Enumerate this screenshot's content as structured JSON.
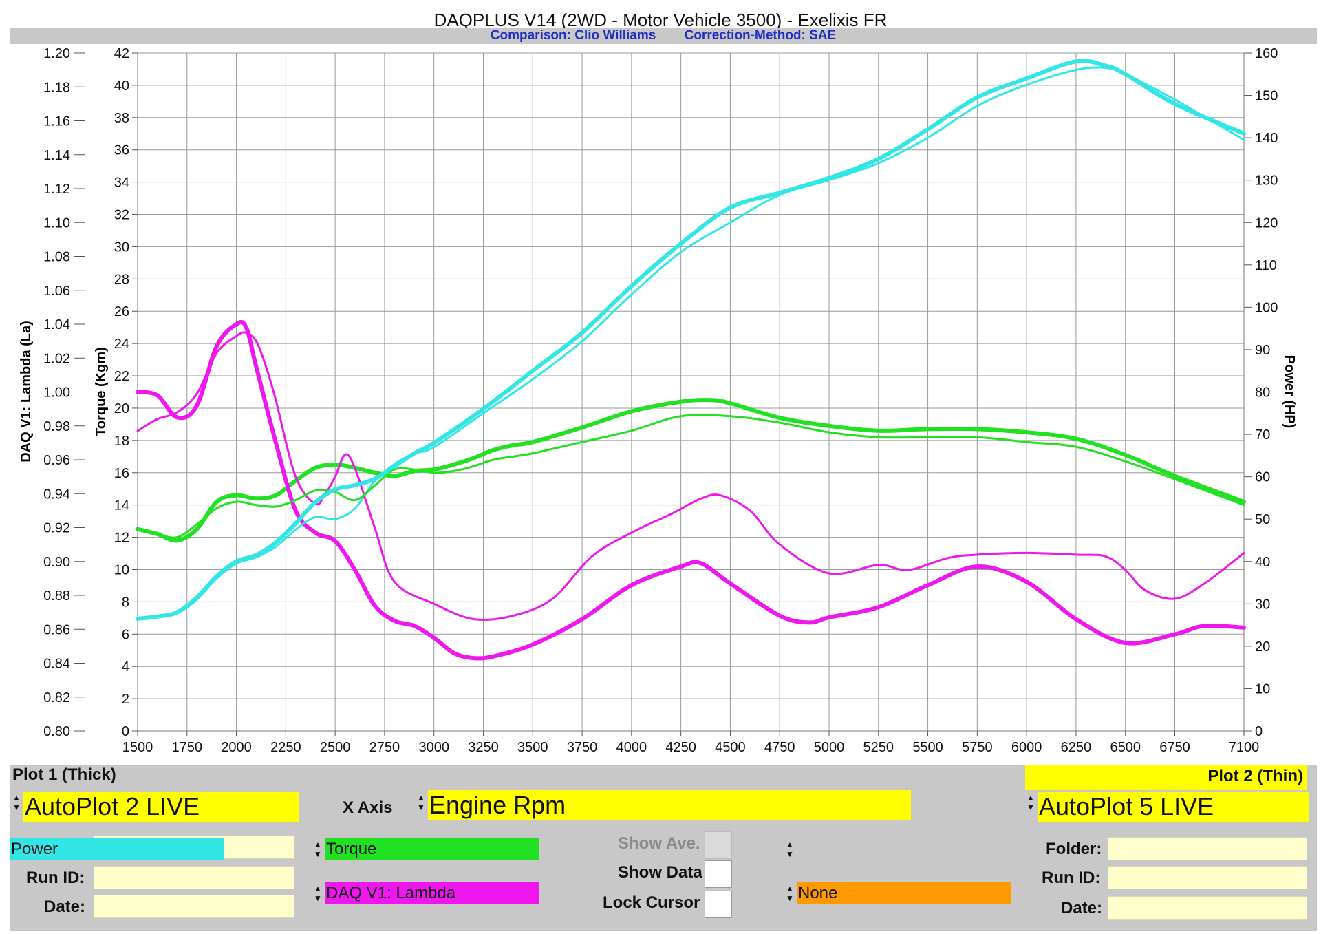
{
  "header": {
    "title": "DAQPLUS V14 (2WD - Motor Vehicle 3500) - Exelixis FR",
    "comparison": "Comparison: Clio Williams",
    "correction": "Correction-Method: SAE"
  },
  "colors": {
    "torque": "#22e022",
    "power": "#33e6e6",
    "lambda": "#ee18ee",
    "none": "#ff9900",
    "yellow": "#ffff00",
    "panel": "#c8c8c8"
  },
  "chart_data": {
    "type": "line",
    "title": "DAQPLUS V14 (2WD - Motor Vehicle 3500) - Exelixis FR",
    "xlim": [
      1500,
      7100
    ],
    "x_ticks": [
      "1500",
      "1750",
      "2000",
      "2250",
      "2500",
      "2750",
      "3000",
      "3250",
      "3500",
      "3750",
      "4000",
      "4250",
      "4500",
      "4750",
      "5000",
      "5250",
      "5500",
      "5750",
      "6000",
      "6250",
      "6500",
      "6750",
      "7100"
    ],
    "axes": {
      "lambda": {
        "label": "DAQ V1: Lambda (La)",
        "min": 0.8,
        "max": 1.2,
        "ticks": [
          "0.80",
          "0.82",
          "0.84",
          "0.86",
          "0.88",
          "0.90",
          "0.92",
          "0.94",
          "0.96",
          "0.98",
          "1.00",
          "1.02",
          "1.04",
          "1.06",
          "1.08",
          "1.10",
          "1.12",
          "1.14",
          "1.16",
          "1.18",
          "1.20"
        ]
      },
      "torque": {
        "label": "Torque (Kgm)",
        "min": 0,
        "max": 42,
        "ticks": [
          "0",
          "2",
          "4",
          "6",
          "8",
          "10",
          "12",
          "14",
          "16",
          "18",
          "20",
          "22",
          "24",
          "26",
          "28",
          "30",
          "32",
          "34",
          "36",
          "38",
          "40",
          "42"
        ]
      },
      "power": {
        "label": "Power (HP)",
        "min": 0,
        "max": 160,
        "ticks": [
          "0",
          "10",
          "20",
          "30",
          "40",
          "50",
          "60",
          "70",
          "80",
          "90",
          "100",
          "110",
          "120",
          "130",
          "140",
          "150",
          "160"
        ]
      }
    },
    "grid": true,
    "series": [
      {
        "name": "Torque",
        "plot": "thick",
        "axis": "torque",
        "color": "#22e022",
        "x": [
          1500,
          1600,
          1700,
          1800,
          1900,
          2000,
          2100,
          2200,
          2300,
          2400,
          2500,
          2600,
          2700,
          2800,
          2900,
          3000,
          3100,
          3200,
          3300,
          3400,
          3500,
          3750,
          4000,
          4250,
          4400,
          4500,
          4750,
          5000,
          5250,
          5500,
          5750,
          6000,
          6250,
          6500,
          6750,
          7100
        ],
        "y": [
          12.5,
          12.2,
          11.8,
          12.5,
          14.2,
          14.6,
          14.4,
          14.6,
          15.5,
          16.3,
          16.5,
          16.3,
          16.0,
          15.8,
          16.1,
          16.2,
          16.5,
          16.9,
          17.4,
          17.7,
          17.9,
          18.8,
          19.8,
          20.4,
          20.5,
          20.3,
          19.4,
          18.9,
          18.6,
          18.7,
          18.7,
          18.5,
          18.1,
          17.1,
          15.8,
          14.2
        ]
      },
      {
        "name": "DAQ V1: Lambda",
        "plot": "thick",
        "axis": "lambda",
        "color": "#ee18ee",
        "x": [
          1500,
          1600,
          1700,
          1800,
          1900,
          2000,
          2050,
          2100,
          2200,
          2300,
          2400,
          2500,
          2600,
          2700,
          2800,
          2900,
          3000,
          3100,
          3200,
          3300,
          3500,
          3750,
          4000,
          4250,
          4350,
          4500,
          4750,
          4900,
          5000,
          5250,
          5500,
          5750,
          6000,
          6250,
          6500,
          6750,
          6900,
          7100
        ],
        "y": [
          1.0,
          0.998,
          0.985,
          0.992,
          1.027,
          1.04,
          1.038,
          1.015,
          0.97,
          0.93,
          0.917,
          0.912,
          0.895,
          0.874,
          0.865,
          0.862,
          0.855,
          0.846,
          0.843,
          0.844,
          0.851,
          0.866,
          0.886,
          0.897,
          0.899,
          0.887,
          0.868,
          0.864,
          0.867,
          0.873,
          0.886,
          0.897,
          0.888,
          0.866,
          0.852,
          0.857,
          0.862,
          0.861
        ]
      },
      {
        "name": "Power",
        "plot": "thin",
        "axis": "power",
        "color": "#33e6e6",
        "x": [
          1500,
          1600,
          1700,
          1800,
          1900,
          2000,
          2100,
          2200,
          2300,
          2400,
          2500,
          2600,
          2700,
          2800,
          2900,
          3000,
          3250,
          3500,
          3750,
          4000,
          4250,
          4500,
          4750,
          5000,
          5250,
          5500,
          5750,
          6000,
          6250,
          6400,
          6500,
          6750,
          7100
        ],
        "y": [
          26.5,
          27.0,
          27.8,
          31.0,
          36.0,
          39.5,
          41.0,
          43.5,
          47.5,
          50.5,
          50.0,
          52.5,
          59.0,
          63.0,
          65.5,
          67.0,
          75.0,
          83.0,
          92.0,
          103.0,
          113.0,
          120.0,
          126.5,
          130.0,
          134.0,
          140.0,
          147.5,
          152.5,
          156.0,
          156.5,
          155.0,
          149.0,
          139.5
        ]
      },
      {
        "name": "DAQ V1: Lambda",
        "plot": "thin",
        "axis": "lambda",
        "color": "#ee18ee",
        "x": [
          1500,
          1600,
          1700,
          1800,
          1900,
          2000,
          2050,
          2100,
          2150,
          2200,
          2300,
          2400,
          2450,
          2500,
          2550,
          2600,
          2700,
          2800,
          3000,
          3200,
          3400,
          3600,
          3800,
          4000,
          4200,
          4350,
          4450,
          4600,
          4750,
          5000,
          5250,
          5400,
          5600,
          5750,
          6000,
          6250,
          6400,
          6500,
          6600,
          6750,
          6900,
          7100
        ],
        "y": [
          0.977,
          0.984,
          0.988,
          0.999,
          1.023,
          1.033,
          1.035,
          1.03,
          1.015,
          0.995,
          0.95,
          0.934,
          0.94,
          0.95,
          0.963,
          0.955,
          0.92,
          0.888,
          0.875,
          0.866,
          0.868,
          0.878,
          0.903,
          0.917,
          0.928,
          0.937,
          0.939,
          0.93,
          0.91,
          0.893,
          0.898,
          0.895,
          0.902,
          0.904,
          0.905,
          0.904,
          0.903,
          0.895,
          0.883,
          0.878,
          0.887,
          0.905
        ]
      },
      {
        "name": "Torque",
        "plot": "thin",
        "axis": "torque",
        "color": "#22e022",
        "x": [
          1500,
          1600,
          1700,
          1800,
          1900,
          2000,
          2100,
          2200,
          2300,
          2400,
          2500,
          2600,
          2700,
          2800,
          2900,
          3000,
          3100,
          3200,
          3300,
          3400,
          3500,
          3750,
          4000,
          4250,
          4500,
          4750,
          5000,
          5250,
          5500,
          5750,
          6000,
          6250,
          6500,
          6750,
          7100
        ],
        "y": [
          12.5,
          12.2,
          12.0,
          12.8,
          13.8,
          14.2,
          14.0,
          13.9,
          14.3,
          14.9,
          14.8,
          14.3,
          15.2,
          16.2,
          16.2,
          16.0,
          16.1,
          16.4,
          16.8,
          17.0,
          17.2,
          17.9,
          18.6,
          19.5,
          19.5,
          19.1,
          18.5,
          18.2,
          18.2,
          18.2,
          17.9,
          17.6,
          16.7,
          15.6,
          14.0
        ]
      },
      {
        "name": "Power",
        "plot": "thick",
        "axis": "power",
        "color": "#33e6e6",
        "x": [
          1500,
          1600,
          1700,
          1800,
          1900,
          2000,
          2100,
          2200,
          2300,
          2400,
          2500,
          2600,
          2700,
          2800,
          2900,
          3000,
          3250,
          3500,
          3750,
          4000,
          4250,
          4500,
          4750,
          5000,
          5250,
          5500,
          5750,
          6000,
          6250,
          6400,
          6500,
          6750,
          7100
        ],
        "y": [
          26.5,
          27.0,
          28.0,
          31.5,
          36.5,
          40.0,
          41.5,
          44.5,
          49.0,
          54.0,
          57.0,
          58.0,
          59.5,
          62.5,
          65.5,
          68.0,
          76.0,
          85.0,
          94.0,
          105.0,
          115.0,
          123.5,
          127.0,
          130.5,
          135.0,
          142.0,
          149.5,
          154.0,
          158.0,
          157.0,
          155.0,
          148.0,
          141.0
        ]
      }
    ]
  },
  "panel": {
    "plot1_label": "Plot 1 (Thick)",
    "plot2_label": "Plot 2 (Thin)",
    "plot1_value": "AutoPlot 2 LIVE",
    "plot2_value": "AutoPlot 5 LIVE",
    "xaxis_label": "X Axis",
    "xaxis_value": "Engine Rpm",
    "folder_label": "Folder:",
    "runid_label": "Run ID:",
    "date_label": "Date:",
    "channel1": "Torque",
    "channel2": "DAQ V1: Lambda",
    "channel3": "Power",
    "channel4": "None",
    "show_ave": "Show Ave.",
    "show_data": "Show Data",
    "lock_cursor": "Lock Cursor"
  }
}
